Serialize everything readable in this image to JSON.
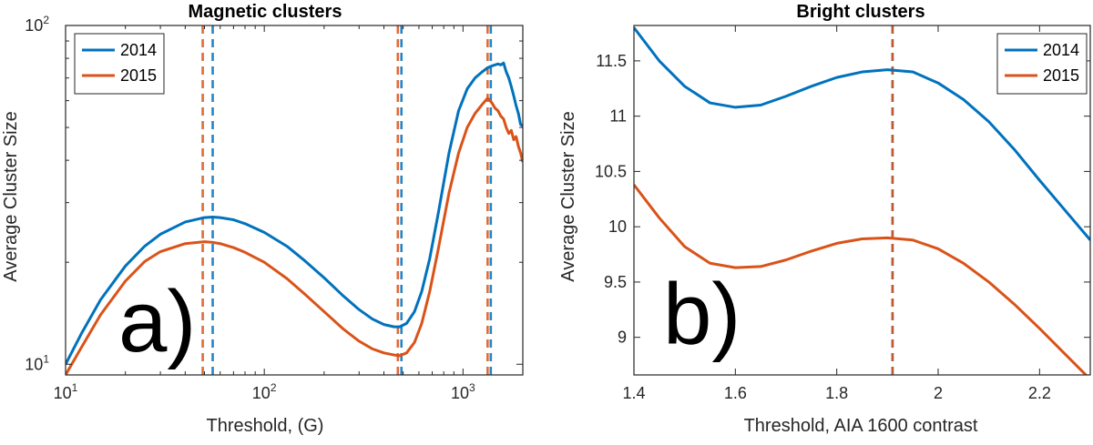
{
  "chart_data": [
    {
      "type": "line",
      "title": "Magnetic clusters",
      "xlabel": "Threshold, (G)",
      "ylabel": "Average Cluster Size",
      "panel_label": "a)",
      "xscale": "log",
      "yscale": "log",
      "xlim": [
        10,
        2000
      ],
      "ylim": [
        9.3,
        100
      ],
      "xticks": [
        10,
        100,
        1000
      ],
      "xtick_labels": [
        {
          "base": "10",
          "exp": "1"
        },
        {
          "base": "10",
          "exp": "2"
        },
        {
          "base": "10",
          "exp": "3"
        }
      ],
      "yticks": [
        10,
        100
      ],
      "ytick_labels": [
        {
          "base": "10",
          "exp": "1"
        },
        {
          "base": "10",
          "exp": "2"
        }
      ],
      "legend_position": "top-left",
      "grid": false,
      "series": [
        {
          "name": "2014",
          "color": "#0072BD",
          "x": [
            10,
            12,
            15,
            20,
            25,
            30,
            40,
            50,
            55,
            60,
            70,
            80,
            100,
            130,
            160,
            200,
            250,
            300,
            350,
            400,
            450,
            480,
            520,
            570,
            620,
            680,
            750,
            850,
            950,
            1050,
            1150,
            1250,
            1330,
            1400,
            1450,
            1500,
            1550,
            1600,
            1650,
            1700,
            1750,
            1800,
            1850,
            1900,
            1950,
            2000
          ],
          "y": [
            10.0,
            12.3,
            15.5,
            19.5,
            22.3,
            24.2,
            26.3,
            27.1,
            27.2,
            27.1,
            26.7,
            26.0,
            24.5,
            22.3,
            20.2,
            18.0,
            15.9,
            14.5,
            13.6,
            13.1,
            12.9,
            12.9,
            13.2,
            14.3,
            16.4,
            20.5,
            27.8,
            42.0,
            56.0,
            65.0,
            70.0,
            73.0,
            75.0,
            76.0,
            76.5,
            77.0,
            76.5,
            77.5,
            73.0,
            70.0,
            66.0,
            62.0,
            58.0,
            55.0,
            51.0,
            50.5
          ]
        },
        {
          "name": "2015",
          "color": "#D95319",
          "x": [
            10,
            12,
            15,
            20,
            25,
            30,
            40,
            50,
            55,
            60,
            70,
            80,
            100,
            130,
            160,
            200,
            250,
            300,
            350,
            400,
            450,
            480,
            520,
            570,
            620,
            680,
            750,
            850,
            950,
            1050,
            1150,
            1250,
            1330,
            1400,
            1450,
            1500,
            1550,
            1600,
            1650,
            1700,
            1750,
            1800,
            1850,
            1900,
            1950,
            2000
          ],
          "y": [
            9.3,
            11.2,
            14.0,
            17.6,
            20.1,
            21.5,
            22.7,
            23.0,
            22.9,
            22.7,
            22.1,
            21.4,
            20.0,
            17.9,
            16.1,
            14.3,
            12.7,
            11.7,
            11.1,
            10.8,
            10.65,
            10.6,
            10.8,
            11.6,
            13.2,
            16.4,
            21.8,
            32.0,
            42.0,
            50.0,
            55.0,
            58.5,
            61.0,
            59.0,
            57.0,
            56.0,
            54.0,
            53.0,
            50.0,
            48.0,
            49.0,
            46.0,
            47.0,
            44.0,
            42.0,
            39.5
          ]
        }
      ],
      "vlines": [
        {
          "x": 49,
          "color": "#D95319"
        },
        {
          "x": 55,
          "color": "#0072BD"
        },
        {
          "x": 470,
          "color": "#D95319"
        },
        {
          "x": 490,
          "color": "#0072BD"
        },
        {
          "x": 1330,
          "color": "#D95319"
        },
        {
          "x": 1380,
          "color": "#0072BD"
        }
      ]
    },
    {
      "type": "line",
      "title": "Bright clusters",
      "xlabel": "Threshold, AIA 1600 contrast",
      "ylabel": "Average Cluster Size",
      "panel_label": "b)",
      "xscale": "linear",
      "yscale": "linear",
      "xlim": [
        1.4,
        2.3
      ],
      "ylim": [
        8.66,
        11.82
      ],
      "xticks": [
        1.4,
        1.6,
        1.8,
        2.0,
        2.2
      ],
      "xtick_labels": [
        "1.4",
        "1.6",
        "1.8",
        "2",
        "2.2"
      ],
      "yticks": [
        9,
        9.5,
        10,
        10.5,
        11,
        11.5
      ],
      "ytick_labels": [
        "9",
        "9.5",
        "10",
        "10.5",
        "11",
        "11.5"
      ],
      "legend_position": "top-right",
      "grid": false,
      "series": [
        {
          "name": "2014",
          "color": "#0072BD",
          "x": [
            1.4,
            1.45,
            1.5,
            1.55,
            1.6,
            1.65,
            1.7,
            1.75,
            1.8,
            1.85,
            1.9,
            1.95,
            2.0,
            2.05,
            2.1,
            2.15,
            2.2,
            2.25,
            2.3
          ],
          "y": [
            11.8,
            11.5,
            11.27,
            11.12,
            11.08,
            11.1,
            11.18,
            11.27,
            11.35,
            11.4,
            11.42,
            11.4,
            11.3,
            11.15,
            10.95,
            10.7,
            10.42,
            10.15,
            9.88
          ]
        },
        {
          "name": "2015",
          "color": "#D95319",
          "x": [
            1.4,
            1.45,
            1.5,
            1.55,
            1.6,
            1.65,
            1.7,
            1.75,
            1.8,
            1.85,
            1.9,
            1.95,
            2.0,
            2.05,
            2.1,
            2.15,
            2.2,
            2.25,
            2.3
          ],
          "y": [
            10.38,
            10.08,
            9.82,
            9.67,
            9.63,
            9.64,
            9.7,
            9.78,
            9.85,
            9.89,
            9.9,
            9.88,
            9.8,
            9.67,
            9.5,
            9.3,
            9.08,
            8.85,
            8.62
          ]
        }
      ],
      "vlines": [
        {
          "x": 1.91,
          "color": "#0072BD"
        },
        {
          "x": 1.91,
          "color": "#D95319"
        }
      ]
    }
  ]
}
